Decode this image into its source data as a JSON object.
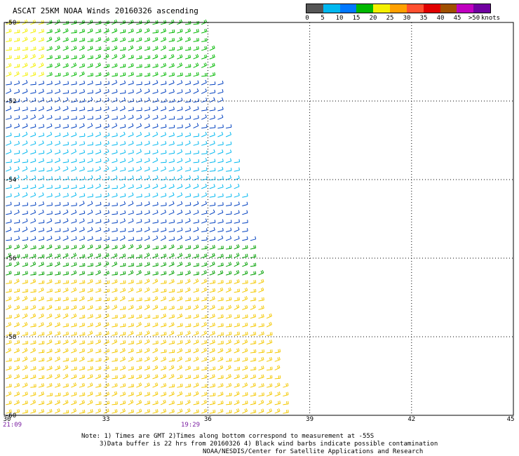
{
  "title": "ASCAT 25KM NOAA Winds 20160326 ascending",
  "legend": {
    "colors": [
      "#555555",
      "#00b8f0",
      "#0078ff",
      "#00b800",
      "#f4f000",
      "#ffa000",
      "#ff5030",
      "#e00000",
      "#a05000",
      "#c000c0",
      "#7000a0"
    ],
    "labels": [
      "0",
      "5",
      "10",
      "15",
      "20",
      "25",
      "30",
      "35",
      "40",
      "45",
      ">50"
    ],
    "unit": "knots"
  },
  "lat_labels": [
    "-50",
    "-52",
    "-54",
    "-56",
    "-58",
    "-60"
  ],
  "lon_labels": [
    "30",
    "33",
    "36",
    "39",
    "42",
    "45"
  ],
  "times": [
    "21:09",
    "19:29"
  ],
  "notes": [
    "Note: 1) Times are GMT 2)Times along bottom correspond to measurement at -55S",
    "3)Data buffer is 22 hrs from 20160326 4) Black wind barbs indicate possible contamination",
    "NOAA/NESDIS/Center for Satellite Applications and Research"
  ],
  "chart_data": {
    "type": "map",
    "lon_range": [
      30,
      45
    ],
    "lat_range": [
      -60,
      -50
    ],
    "grid": true,
    "wind_bands": [
      {
        "lat_from": -50.0,
        "lat_to": -51.5,
        "speed_kts": 22,
        "color_lon_split": 31.2,
        "west_color": "#f4f000",
        "east_color": "#00b800"
      },
      {
        "lat_from": -51.5,
        "lat_to": -52.8,
        "speed_kts": 14,
        "color": "#0040c0"
      },
      {
        "lat_from": -52.8,
        "lat_to": -54.5,
        "speed_kts": 8,
        "color": "#00b8f0"
      },
      {
        "lat_from": -54.5,
        "lat_to": -55.6,
        "speed_kts": 13,
        "color": "#0040c0"
      },
      {
        "lat_from": -55.6,
        "lat_to": -56.6,
        "speed_kts": 17,
        "color": "#00a000"
      },
      {
        "lat_from": -56.6,
        "lat_to": -60.0,
        "speed_kts": 24,
        "color": "#f4c800"
      }
    ]
  }
}
